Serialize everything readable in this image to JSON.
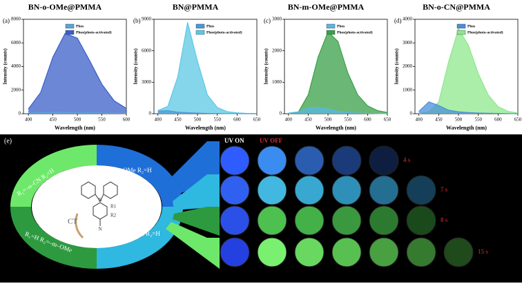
{
  "chart_data": [
    {
      "type": "area",
      "panel_label": "(a)",
      "title": "BN-o-OMe@PMMA",
      "x_label": "Wavelength (nm)",
      "y_label": "Intensity (counts)",
      "x": [
        400,
        425,
        450,
        475,
        500,
        525,
        550,
        575,
        600
      ],
      "xlim": [
        390,
        600
      ],
      "xticks": [
        400,
        450,
        500,
        550,
        600
      ],
      "ylim": [
        0,
        8000
      ],
      "yticks": [
        0,
        2000,
        4000,
        6000,
        8000
      ],
      "series": [
        {
          "name": "Phos",
          "color": "#5ba3e0",
          "values": [
            80,
            100,
            120,
            110,
            100,
            80,
            60,
            40,
            30
          ]
        },
        {
          "name": "Phos(photo-activated)",
          "color": "#3a5fc8",
          "values": [
            400,
            1800,
            4800,
            6800,
            6400,
            4500,
            2500,
            1100,
            450
          ]
        }
      ]
    },
    {
      "type": "area",
      "panel_label": "(b)",
      "title": "BN@PMMA",
      "x_label": "Wavelength (nm)",
      "y_label": "Intensity (counts)",
      "x": [
        400,
        425,
        450,
        475,
        500,
        525,
        550,
        575,
        600,
        625,
        650
      ],
      "xlim": [
        390,
        650
      ],
      "xticks": [
        400,
        450,
        500,
        550,
        600,
        650
      ],
      "ylim": [
        0,
        9000
      ],
      "yticks": [
        0,
        3000,
        6000,
        9000
      ],
      "series": [
        {
          "name": "Phos",
          "color": "#4a9bd8",
          "values": [
            250,
            300,
            150,
            100,
            60,
            30,
            20,
            10,
            5,
            0,
            0
          ]
        },
        {
          "name": "Phos(photo-activated)",
          "color": "#5cc8e4",
          "values": [
            300,
            700,
            3500,
            8700,
            5000,
            1800,
            600,
            200,
            80,
            30,
            10
          ]
        }
      ]
    },
    {
      "type": "area",
      "panel_label": "(c)",
      "title": "BN-m-OMe@PMMA",
      "x_label": "Wavelength (nm)",
      "y_label": "Intensity (counts)",
      "x": [
        400,
        425,
        450,
        475,
        500,
        525,
        550,
        575,
        600,
        625,
        650
      ],
      "xlim": [
        390,
        650
      ],
      "xticks": [
        400,
        450,
        500,
        550,
        600,
        650
      ],
      "ylim": [
        0,
        3000
      ],
      "yticks": [
        0,
        1000,
        2000,
        3000
      ],
      "series": [
        {
          "name": "Phos",
          "color": "#58b8e0",
          "values": [
            20,
            60,
            180,
            200,
            150,
            80,
            40,
            20,
            10,
            5,
            0
          ]
        },
        {
          "name": "Phos(photo-activated)",
          "color": "#3aa048",
          "values": [
            0,
            50,
            600,
            1800,
            2600,
            2300,
            1300,
            600,
            250,
            100,
            40
          ]
        }
      ]
    },
    {
      "type": "area",
      "panel_label": "(d)",
      "title": "BN-o-CN@PMMA",
      "x_label": "Wavelength (nm)",
      "y_label": "Intensity (counts)",
      "x": [
        400,
        425,
        450,
        475,
        500,
        525,
        550,
        575,
        600,
        625,
        650
      ],
      "xlim": [
        390,
        650
      ],
      "xticks": [
        400,
        450,
        500,
        550,
        600,
        650
      ],
      "ylim": [
        0,
        4000
      ],
      "yticks": [
        0,
        1000,
        2000,
        3000,
        4000
      ],
      "series": [
        {
          "name": "Phos",
          "color": "#4a90d8",
          "values": [
            100,
            500,
            350,
            150,
            80,
            50,
            30,
            20,
            10,
            5,
            0
          ]
        },
        {
          "name": "Phos(photo-activated)",
          "color": "#8ee88e",
          "values": [
            0,
            80,
            500,
            2200,
            3600,
            2900,
            1700,
            800,
            300,
            100,
            30
          ]
        }
      ]
    }
  ],
  "photo_panel": {
    "label": "(e)",
    "uv_on": "UV ON",
    "uv_off": "UV OFF",
    "rows": [
      {
        "time": "4 s",
        "colors": [
          "#2f5cff",
          "#3a8cf0",
          "#2a5cb0",
          "#1a3a7a",
          "#0d1e40"
        ]
      },
      {
        "time": "7 s",
        "colors": [
          "#3060f0",
          "#42b8e0",
          "#38a8d0",
          "#2e8fb8",
          "#246e92",
          "#153f58"
        ]
      },
      {
        "time": "8 s",
        "colors": [
          "#2a50e8",
          "#4ec050",
          "#44b048",
          "#3a983e",
          "#2c7a30",
          "#1a4a1c"
        ]
      },
      {
        "time": "15 s",
        "colors": [
          "#2540e0",
          "#7af070",
          "#68d860",
          "#58c050",
          "#48a040",
          "#367a30",
          "#1f4a1c"
        ]
      }
    ]
  },
  "molecule": {
    "ct": "CT",
    "r1": "R1",
    "r2": "R2",
    "b": "B",
    "n": "N",
    "substituents": [
      "R₁=–o–OMe  R₂=H",
      "R₁=H  R₂=H",
      "R₁=H  R₂=–m–OMe",
      "R₁=–o–CN  R₂=H"
    ]
  }
}
